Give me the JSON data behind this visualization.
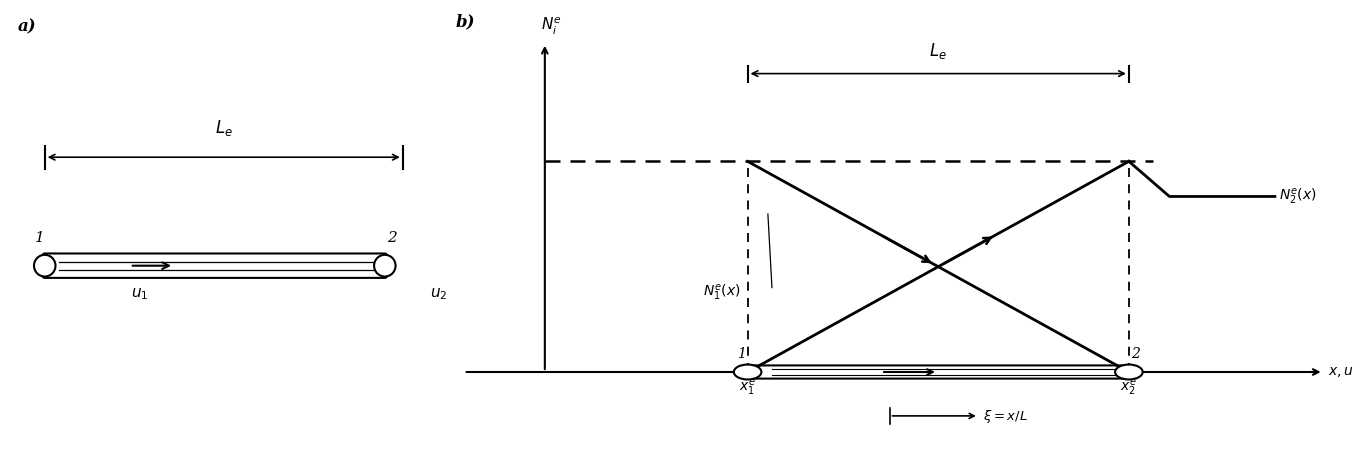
{
  "fig_width": 13.56,
  "fig_height": 4.52,
  "bg_color": "#ffffff",
  "label_a": "a)",
  "label_b": "b)"
}
